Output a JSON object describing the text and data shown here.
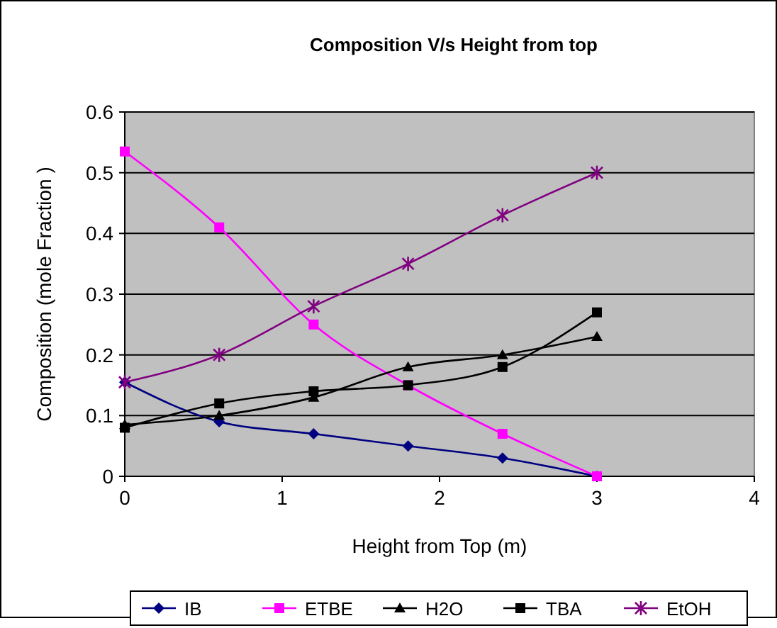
{
  "chart_data": {
    "type": "line",
    "title": "Composition V/s Height from top",
    "xlabel": "Height from Top (m)",
    "ylabel": "Composition (mole Fraction )",
    "x": [
      0,
      0.6,
      1.2,
      1.8,
      2.4,
      3
    ],
    "xlim": [
      0,
      4
    ],
    "xticks": [
      0,
      1,
      2,
      3,
      4
    ],
    "ylim": [
      0,
      0.6
    ],
    "yticks": [
      0,
      0.1,
      0.2,
      0.3,
      0.4,
      0.5,
      0.6
    ],
    "grid": "y",
    "legend": "bottom",
    "series": [
      {
        "name": "IB",
        "color": "#000080",
        "marker": "diamond",
        "values": [
          0.155,
          0.09,
          0.07,
          0.05,
          0.03,
          0.0
        ]
      },
      {
        "name": "ETBE",
        "color": "#ff00ff",
        "marker": "square",
        "values": [
          0.535,
          0.41,
          0.25,
          0.15,
          0.07,
          0.0
        ]
      },
      {
        "name": "H2O",
        "color": "#000000",
        "marker": "triangle",
        "values": [
          0.085,
          0.1,
          0.13,
          0.18,
          0.2,
          0.23
        ]
      },
      {
        "name": "TBA",
        "color": "#000000",
        "marker": "square",
        "values": [
          0.08,
          0.12,
          0.14,
          0.15,
          0.18,
          0.27
        ]
      },
      {
        "name": "EtOH",
        "color": "#800080",
        "marker": "cross",
        "values": [
          0.155,
          0.2,
          0.28,
          0.35,
          0.43,
          0.5
        ]
      }
    ]
  }
}
